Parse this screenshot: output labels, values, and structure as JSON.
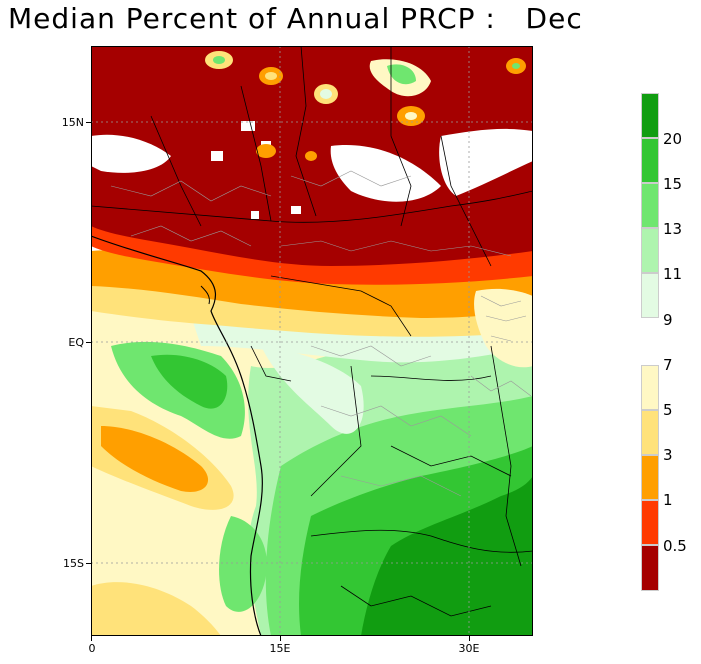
{
  "title": "Median Percent of Annual PRCP :   Dec",
  "map": {
    "lat_labels": [
      "15N",
      "EQ",
      "15S"
    ],
    "lon_labels": [
      "0",
      "15E",
      "30E"
    ],
    "grid_style": "dotted"
  },
  "colorbar": {
    "labels": [
      "20",
      "15",
      "13",
      "11",
      "9",
      "7",
      "5",
      "3",
      "1",
      "0.5"
    ],
    "colors": {
      "c20": "#119d11",
      "c15": "#33c633",
      "c13": "#6fe66f",
      "c11": "#aef4ae",
      "c9": "#e3fbe3",
      "c7": "#fff8c4",
      "c5": "#ffe27a",
      "c3": "#ff9f00",
      "c1": "#ff3a00",
      "c05": "#a50000"
    }
  },
  "colors": {
    "land_lines": "#000000",
    "admin_lines": "#9a9a9a",
    "background": "#ffffff"
  }
}
